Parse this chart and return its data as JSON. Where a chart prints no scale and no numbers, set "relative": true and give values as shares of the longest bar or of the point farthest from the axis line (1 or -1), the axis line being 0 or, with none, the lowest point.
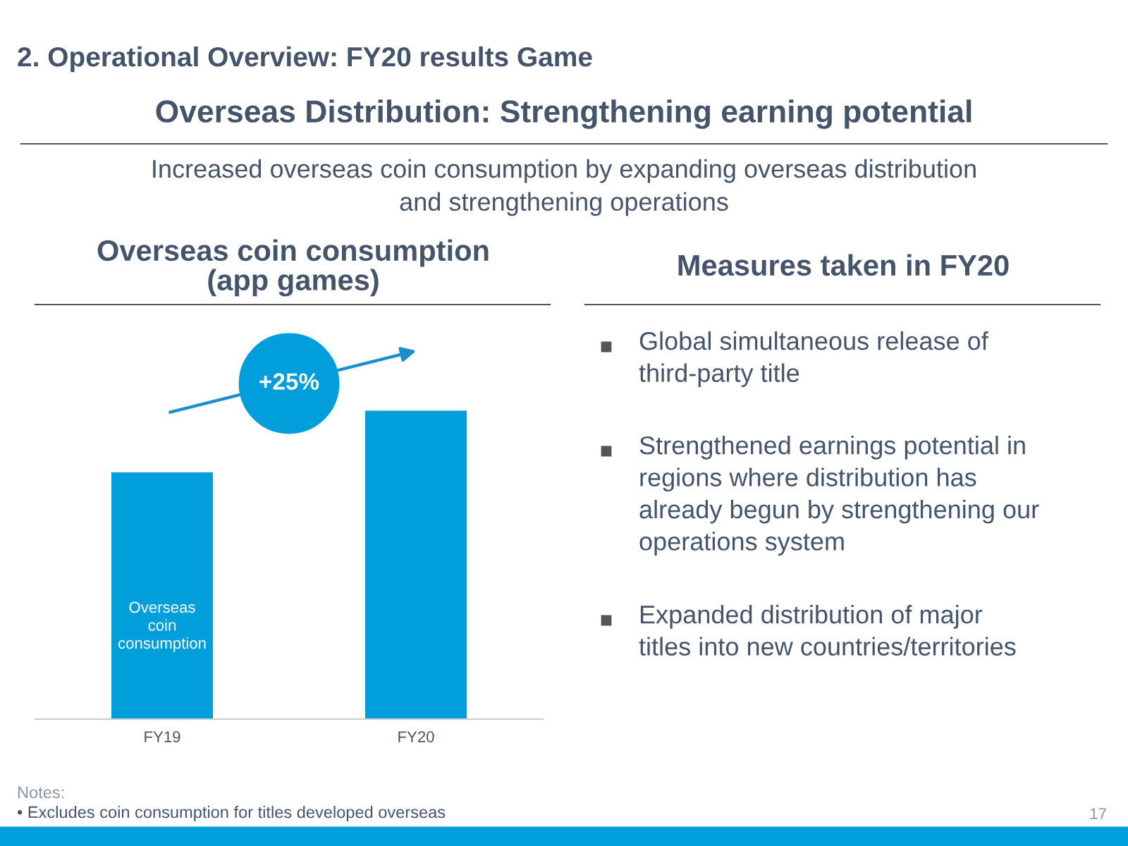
{
  "chart_data": [
    {
      "type": "other",
      "title": "2. Operational Overview: FY20 results Game",
      "subtitle": "Overseas Distribution: Strengthening earning potential",
      "annotations": [
        "Increased overseas coin consumption by expanding overseas distribution\nand strengthening operations",
        "Notes:",
        "• Excludes coin consumption for titles developed overseas",
        "17"
      ]
    },
    {
      "type": "bar",
      "title": "Overseas coin consumption\n(app games)",
      "categories": [
        "FY19",
        "FY20"
      ],
      "values": [
        0.8,
        1
      ],
      "color": "#009fdb",
      "relative": true,
      "annotations": [
        "Overseas\ncoin\nconsumption",
        "+25%"
      ]
    },
    {
      "type": "other",
      "title": "Measures taken in FY20",
      "annotations": [
        "Global simultaneous release of\nthird-party title",
        "Strengthened earnings potential in\nregions where distribution has\nalready begun by strengthening our\noperations system",
        "Expanded distribution of major\ntitles into new countries/territories"
      ]
    }
  ]
}
